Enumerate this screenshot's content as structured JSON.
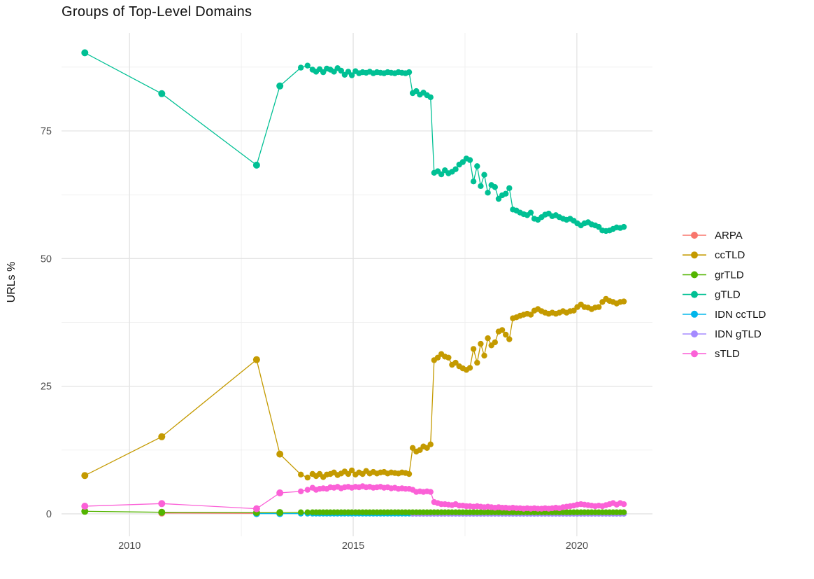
{
  "chart_data": {
    "type": "line",
    "title": "Groups of Top-Level Domains",
    "ylabel": "URLs %",
    "xlabel": "",
    "legend_position": "right",
    "grid": "major+minor, light gray on white",
    "x_ticks": [
      2010,
      2015,
      2020
    ],
    "y_ticks": [
      0,
      25,
      50,
      75
    ],
    "x_minor_gridlines": [
      2012.5,
      2017.5
    ],
    "y_minor_gridlines": [
      12.5,
      37.5,
      62.5,
      87.5
    ],
    "xlim": [
      2008.48,
      2021.69
    ],
    "ylim": [
      -4.4,
      94.2
    ],
    "colors": {
      "tick_text": "#4d4d4d",
      "gridline_major": "#e3e3e3",
      "gridline_minor": "#efefef",
      "title_text": "#111111"
    },
    "dense_x": [
      2013.83,
      2013.98,
      2014.09,
      2014.17,
      2014.25,
      2014.33,
      2014.41,
      2014.49,
      2014.57,
      2014.65,
      2014.73,
      2014.81,
      2014.89,
      2014.97,
      2015.05,
      2015.13,
      2015.21,
      2015.29,
      2015.37,
      2015.45,
      2015.53,
      2015.61,
      2015.69,
      2015.77,
      2015.85,
      2015.93,
      2016.01,
      2016.09,
      2016.17,
      2016.25,
      2016.33,
      2016.41,
      2016.49,
      2016.57,
      2016.65,
      2016.73,
      2016.81,
      2016.89,
      2016.97,
      2017.05,
      2017.13,
      2017.21,
      2017.29,
      2017.37,
      2017.45,
      2017.53,
      2017.61,
      2017.69,
      2017.77,
      2017.85,
      2017.93,
      2018.01,
      2018.09,
      2018.17,
      2018.25,
      2018.33,
      2018.41,
      2018.49,
      2018.57,
      2018.65,
      2018.73,
      2018.81,
      2018.89,
      2018.97,
      2019.05,
      2019.13,
      2019.21,
      2019.29,
      2019.37,
      2019.45,
      2019.53,
      2019.61,
      2019.69,
      2019.77,
      2019.85,
      2019.93,
      2020.01,
      2020.09,
      2020.17,
      2020.25,
      2020.33,
      2020.41,
      2020.49,
      2020.57,
      2020.65,
      2020.73,
      2020.81,
      2020.89,
      2020.97,
      2021.05
    ],
    "series": [
      {
        "name": "ARPA",
        "color": "#F8766D",
        "early": [
          [
            2010.72,
            0.15
          ],
          [
            2012.84,
            0.1
          ],
          [
            2013.36,
            0.08
          ]
        ]
      },
      {
        "name": "ccTLD",
        "color": "#C49A00",
        "early": [
          [
            2009.0,
            7.5
          ],
          [
            2010.72,
            15.1
          ],
          [
            2012.84,
            30.2
          ],
          [
            2013.36,
            11.7
          ]
        ],
        "dense_y": [
          7.7,
          7.1,
          7.8,
          7.4,
          7.8,
          7.2,
          7.7,
          7.8,
          8.1,
          7.6,
          7.9,
          8.3,
          7.8,
          8.5,
          7.7,
          8.1,
          7.8,
          8.4,
          7.9,
          8.2,
          7.9,
          8.1,
          8.2,
          7.9,
          8.1,
          8.0,
          7.9,
          8.1,
          8.0,
          7.8,
          12.9,
          12.2,
          12.5,
          13.2,
          12.9,
          13.6,
          30.1,
          30.6,
          31.3,
          30.8,
          30.6,
          29.2,
          29.6,
          28.9,
          28.5,
          28.2,
          28.6,
          32.3,
          29.6,
          33.3,
          31.0,
          34.4,
          33.0,
          33.6,
          35.7,
          36.0,
          35.1,
          34.2,
          38.3,
          38.5,
          38.8,
          39.0,
          39.2,
          39.0,
          39.8,
          40.1,
          39.7,
          39.4,
          39.2,
          39.4,
          39.2,
          39.4,
          39.7,
          39.4,
          39.7,
          39.8,
          40.5,
          41.0,
          40.5,
          40.4,
          40.1,
          40.4,
          40.5,
          41.5,
          42.1,
          41.7,
          41.5,
          41.2,
          41.5,
          41.6
        ]
      },
      {
        "name": "grTLD",
        "color": "#53B400",
        "early": [
          [
            2009.0,
            0.5
          ],
          [
            2010.72,
            0.3
          ],
          [
            2012.84,
            0.25
          ],
          [
            2013.36,
            0.25
          ]
        ],
        "dense_const": 0.3
      },
      {
        "name": "gTLD",
        "color": "#00C094",
        "early": [
          [
            2009.0,
            90.3
          ],
          [
            2010.72,
            82.3
          ],
          [
            2012.84,
            68.3
          ],
          [
            2013.36,
            83.8
          ]
        ],
        "dense_y": [
          87.4,
          87.8,
          87.0,
          86.6,
          87.1,
          86.5,
          87.2,
          87.0,
          86.6,
          87.3,
          86.8,
          86.0,
          86.6,
          85.9,
          86.7,
          86.3,
          86.5,
          86.4,
          86.6,
          86.3,
          86.5,
          86.4,
          86.3,
          86.5,
          86.4,
          86.3,
          86.5,
          86.4,
          86.3,
          86.5,
          82.4,
          82.8,
          82.1,
          82.5,
          82.0,
          81.6,
          66.8,
          67.1,
          66.5,
          67.3,
          66.7,
          67.0,
          67.5,
          68.4,
          68.9,
          69.6,
          69.3,
          65.1,
          68.1,
          64.2,
          66.4,
          62.9,
          64.4,
          64.0,
          61.7,
          62.4,
          62.7,
          63.8,
          59.6,
          59.4,
          59.0,
          58.7,
          58.5,
          59.0,
          57.8,
          57.6,
          58.1,
          58.6,
          58.8,
          58.3,
          58.5,
          58.1,
          57.8,
          57.6,
          57.8,
          57.4,
          56.9,
          56.5,
          56.9,
          57.1,
          56.7,
          56.5,
          56.2,
          55.5,
          55.4,
          55.5,
          55.8,
          56.1,
          56.0,
          56.2
        ]
      },
      {
        "name": "IDN ccTLD",
        "color": "#00B6EB",
        "early": [
          [
            2012.84,
            0.05
          ],
          [
            2013.36,
            0.05
          ]
        ],
        "dense_const": 0.05
      },
      {
        "name": "IDN gTLD",
        "color": "#A58AFF",
        "dense_const": 0.02,
        "dense_from": 2016.33
      },
      {
        "name": "sTLD",
        "color": "#FB61D7",
        "early": [
          [
            2009.0,
            1.5
          ],
          [
            2010.72,
            2.0
          ],
          [
            2012.84,
            1.0
          ],
          [
            2013.36,
            4.1
          ]
        ],
        "dense_y": [
          4.4,
          4.7,
          5.1,
          4.7,
          4.9,
          5.0,
          4.9,
          5.2,
          5.1,
          5.3,
          5.0,
          5.2,
          5.3,
          5.1,
          5.3,
          5.2,
          5.4,
          5.2,
          5.3,
          5.1,
          5.2,
          5.3,
          5.1,
          5.2,
          5.0,
          5.1,
          4.9,
          5.0,
          4.9,
          4.9,
          4.7,
          4.3,
          4.4,
          4.3,
          4.4,
          4.3,
          2.3,
          2.1,
          1.9,
          1.9,
          1.8,
          1.7,
          1.9,
          1.6,
          1.6,
          1.5,
          1.5,
          1.4,
          1.5,
          1.4,
          1.3,
          1.4,
          1.3,
          1.2,
          1.3,
          1.2,
          1.2,
          1.1,
          1.2,
          1.1,
          1.1,
          1.0,
          1.1,
          1.0,
          1.1,
          1.0,
          1.0,
          1.1,
          1.0,
          1.1,
          1.2,
          1.1,
          1.3,
          1.4,
          1.5,
          1.6,
          1.8,
          1.9,
          1.8,
          1.7,
          1.6,
          1.5,
          1.6,
          1.5,
          1.7,
          1.9,
          2.1,
          1.8,
          2.1,
          1.9
        ]
      }
    ]
  }
}
